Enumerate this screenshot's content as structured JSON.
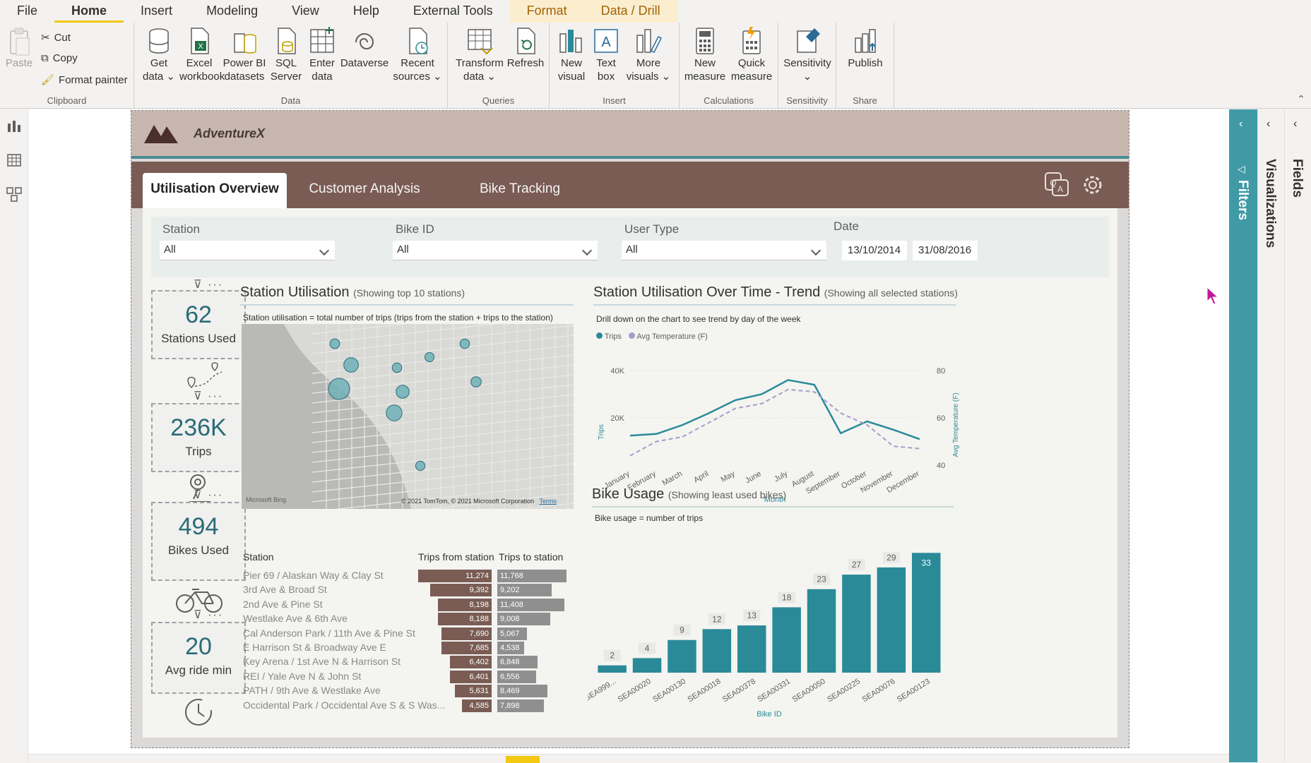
{
  "menu": [
    "File",
    "Home",
    "Insert",
    "Modeling",
    "View",
    "Help",
    "External Tools",
    "Format",
    "Data / Drill"
  ],
  "ribbon": {
    "clipboard": {
      "paste": "Paste",
      "cut": "Cut",
      "copy": "Copy",
      "format_painter": "Format painter",
      "label": "Clipboard"
    },
    "data": {
      "label": "Data",
      "buttons": [
        {
          "l1": "Get",
          "l2": "data ⌄"
        },
        {
          "l1": "Excel",
          "l2": "workbook"
        },
        {
          "l1": "Power BI",
          "l2": "datasets"
        },
        {
          "l1": "SQL",
          "l2": "Server"
        },
        {
          "l1": "Enter",
          "l2": "data"
        },
        {
          "l1": "Dataverse",
          "l2": ""
        },
        {
          "l1": "Recent",
          "l2": "sources ⌄"
        }
      ]
    },
    "queries": {
      "label": "Queries",
      "buttons": [
        {
          "l1": "Transform",
          "l2": "data ⌄"
        },
        {
          "l1": "Refresh",
          "l2": ""
        }
      ]
    },
    "insert": {
      "label": "Insert",
      "buttons": [
        {
          "l1": "New",
          "l2": "visual"
        },
        {
          "l1": "Text",
          "l2": "box"
        },
        {
          "l1": "More",
          "l2": "visuals ⌄"
        }
      ]
    },
    "calculations": {
      "label": "Calculations",
      "buttons": [
        {
          "l1": "New",
          "l2": "measure"
        },
        {
          "l1": "Quick",
          "l2": "measure"
        }
      ]
    },
    "sensitivity": {
      "label": "Sensitivity",
      "buttons": [
        {
          "l1": "Sensitivity",
          "l2": "⌄"
        }
      ]
    },
    "share": {
      "label": "Share",
      "buttons": [
        {
          "l1": "Publish",
          "l2": ""
        }
      ]
    }
  },
  "report": {
    "brand": "AdventureX",
    "tabs": [
      "Utilisation Overview",
      "Customer Analysis",
      "Bike Tracking"
    ],
    "slicers": {
      "station": {
        "label": "Station",
        "value": "All"
      },
      "bike": {
        "label": "Bike ID",
        "value": "All"
      },
      "user": {
        "label": "User Type",
        "value": "All"
      },
      "date": {
        "label": "Date",
        "from": "13/10/2014",
        "to": "31/08/2016"
      }
    },
    "kpis": [
      {
        "value": "62",
        "label": "Stations Used"
      },
      {
        "value": "236K",
        "label": "Trips"
      },
      {
        "value": "494",
        "label": "Bikes Used"
      },
      {
        "value": "20",
        "label": "Avg ride min"
      }
    ],
    "map_visual": {
      "title": "Station Utilisation",
      "title_note": "(Showing top 10 stations)",
      "subtitle": "Station utilisation = total number of trips (trips from the station + trips to the station)",
      "attribution": "© 2021 TomTom, © 2021 Microsoft Corporation",
      "terms": "Terms",
      "bing": "Microsoft Bing"
    },
    "station_table": {
      "headers": [
        "Station",
        "Trips from station",
        "Trips to station"
      ],
      "rows": [
        {
          "station": "Pier 69 / Alaskan Way & Clay St",
          "from": 11274,
          "from_label": "11,274",
          "to": 11768,
          "to_label": "11,768"
        },
        {
          "station": "3rd Ave & Broad St",
          "from": 9392,
          "from_label": "9,392",
          "to": 9202,
          "to_label": "9,202"
        },
        {
          "station": "2nd Ave & Pine St",
          "from": 8198,
          "from_label": "8,198",
          "to": 11408,
          "to_label": "11,408"
        },
        {
          "station": "Westlake Ave & 6th Ave",
          "from": 8188,
          "from_label": "8,188",
          "to": 9008,
          "to_label": "9,008"
        },
        {
          "station": "Cal Anderson Park / 11th Ave & Pine St",
          "from": 7690,
          "from_label": "7,690",
          "to": 5067,
          "to_label": "5,067"
        },
        {
          "station": "E Harrison St & Broadway Ave E",
          "from": 7685,
          "from_label": "7,685",
          "to": 4538,
          "to_label": "4,538"
        },
        {
          "station": "Key Arena / 1st Ave N & Harrison St",
          "from": 6402,
          "from_label": "6,402",
          "to": 6848,
          "to_label": "6,848"
        },
        {
          "station": "REI / Yale Ave N & John St",
          "from": 6401,
          "from_label": "6,401",
          "to": 6556,
          "to_label": "6,556"
        },
        {
          "station": "PATH / 9th Ave & Westlake Ave",
          "from": 5631,
          "from_label": "5,631",
          "to": 8469,
          "to_label": "8,469"
        },
        {
          "station": "Occidental Park / Occidental Ave S & S Was...",
          "from": 4585,
          "from_label": "4,585",
          "to": 7898,
          "to_label": "7,898"
        }
      ]
    },
    "trend": {
      "title": "Station Utilisation Over Time - Trend",
      "title_note": "(Showing all selected stations)",
      "subtitle": "Drill down on the chart to see trend by day of the week",
      "legend_trips": "Trips",
      "legend_temp": "Avg Temperature (F)",
      "ylabel_left": "Trips",
      "ylabel_right": "Avg Temperature (F)",
      "xlabel": "Month"
    },
    "bike": {
      "title": "Bike Usage",
      "title_note": "(Showing least used bikes)",
      "subtitle": "Bike usage = number of trips",
      "xlabel": "Bike ID"
    }
  },
  "chart_data": [
    {
      "type": "line",
      "title": "Station Utilisation Over Time - Trend",
      "xlabel": "Month",
      "ylabel": "Trips",
      "ylabel_right": "Avg Temperature (F)",
      "categories": [
        "January",
        "February",
        "March",
        "April",
        "May",
        "June",
        "July",
        "August",
        "September",
        "October",
        "November",
        "December"
      ],
      "series": [
        {
          "name": "Trips",
          "axis": "left",
          "color": "#2a8a98",
          "values": [
            12500,
            13200,
            17000,
            22000,
            27500,
            30000,
            36000,
            34000,
            13500,
            18500,
            15000,
            11000
          ]
        },
        {
          "name": "Avg Temperature (F)",
          "axis": "right",
          "color": "#a89cc8",
          "dashed": true,
          "values": [
            44,
            50,
            52,
            58,
            64,
            66,
            72,
            71,
            62,
            57,
            48,
            47
          ]
        }
      ],
      "ylim": [
        0,
        40000
      ],
      "yticks": [
        {
          "v": 20000,
          "label": "20K"
        },
        {
          "v": 40000,
          "label": "40K"
        }
      ],
      "ylim_right": [
        40,
        80
      ],
      "yticks_right": [
        40,
        60,
        80
      ],
      "legend": "top-left"
    },
    {
      "type": "bar",
      "title": "Bike Usage",
      "xlabel": "Bike ID",
      "categories": [
        "SEA999...",
        "SEA00020",
        "SEA00130",
        "SEA00018",
        "SEA00378",
        "SEA00331",
        "SEA00050",
        "SEA00225",
        "SEA00076",
        "SEA00123"
      ],
      "values": [
        2,
        4,
        9,
        12,
        13,
        18,
        23,
        27,
        29,
        33
      ],
      "ylim": [
        0,
        35
      ],
      "color": "#2a8a98"
    }
  ],
  "map_points": [
    {
      "name": "Pier 69 / Alaskan Way & Clay St",
      "trips": 23042
    },
    {
      "name": "2nd Ave & Pine St",
      "trips": 19606
    },
    {
      "name": "3rd Ave & Broad St",
      "trips": 18594
    },
    {
      "name": "Westlake Ave & 6th Ave",
      "trips": 17196
    },
    {
      "name": "Key Arena / 1st Ave N & Harrison St",
      "trips": 13250
    },
    {
      "name": "REI / Yale Ave N & John St",
      "trips": 12957
    },
    {
      "name": "Cal Anderson Park / 11th Ave & Pine St",
      "trips": 12757
    },
    {
      "name": "E Harrison St & Broadway Ave E",
      "trips": 12223
    },
    {
      "name": "PATH / 9th Ave & Westlake Ave",
      "trips": 14100
    },
    {
      "name": "Occidental Park / Occidental Ave S & S Was...",
      "trips": 12483
    }
  ],
  "panes": {
    "filters": "Filters",
    "visualizations": "Visualizations",
    "fields": "Fields"
  },
  "colors": {
    "accent": "#f2c811",
    "teal": "#2a8a98",
    "brown": "#7a5c54"
  }
}
